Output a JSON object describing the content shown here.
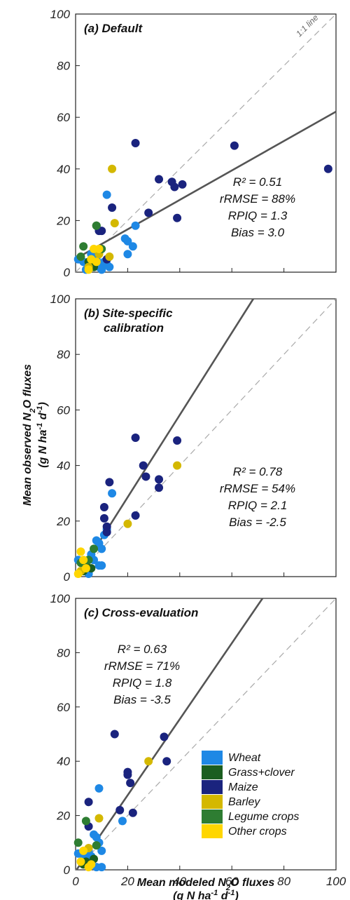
{
  "colors": {
    "Wheat": "#1e88e5",
    "Grass+clover": "#1b5e20",
    "Maize": "#1a237e",
    "Barley": "#d4b800",
    "Legume crops": "#2e7d32",
    "Other crops": "#ffd600",
    "fit_line": "#555555",
    "one_to_one": "#aaaaaa"
  },
  "labels": {
    "ylabel": "Mean observed N2O fluxes",
    "ylabel_units": "(g N ha-1 d-1)",
    "xlabel": "Mean modeled N2O fluxes",
    "xlabel_units": "(g N ha-1 d-1)",
    "one_to_one": "1:1 line"
  },
  "legend": {
    "placement": "bottom-right of panel (c)",
    "items": [
      "Wheat",
      "Grass+clover",
      "Maize",
      "Barley",
      "Legume crops",
      "Other crops"
    ]
  },
  "chart_data": [
    {
      "type": "scatter",
      "title": "(a) Default",
      "xlim": [
        0,
        100
      ],
      "ylim": [
        0,
        100
      ],
      "ticks": [
        0,
        20,
        40,
        60,
        80,
        100
      ],
      "show_x_ticks": false,
      "fit_line": {
        "slope": 0.57,
        "intercept": 5.2
      },
      "stats": [
        "R² = 0.51",
        "rRMSE = 88%",
        "RPIQ = 1.3",
        "Bias = 3.0"
      ],
      "stats_placement": "right",
      "points": [
        {
          "x": 1,
          "y": 5,
          "c": "Wheat"
        },
        {
          "x": 3,
          "y": 4,
          "c": "Wheat"
        },
        {
          "x": 5,
          "y": 3,
          "c": "Wheat"
        },
        {
          "x": 6,
          "y": 7,
          "c": "Wheat"
        },
        {
          "x": 8,
          "y": 5,
          "c": "Wheat"
        },
        {
          "x": 9,
          "y": 2,
          "c": "Wheat"
        },
        {
          "x": 10,
          "y": 1,
          "c": "Wheat"
        },
        {
          "x": 11,
          "y": 4,
          "c": "Wheat"
        },
        {
          "x": 12,
          "y": 30,
          "c": "Wheat"
        },
        {
          "x": 12,
          "y": 3,
          "c": "Wheat"
        },
        {
          "x": 13,
          "y": 2,
          "c": "Wheat"
        },
        {
          "x": 19,
          "y": 13,
          "c": "Wheat"
        },
        {
          "x": 20,
          "y": 12,
          "c": "Wheat"
        },
        {
          "x": 20,
          "y": 7,
          "c": "Wheat"
        },
        {
          "x": 22,
          "y": 10,
          "c": "Wheat"
        },
        {
          "x": 23,
          "y": 18,
          "c": "Wheat"
        },
        {
          "x": 7,
          "y": 6,
          "c": "Wheat"
        },
        {
          "x": 4,
          "y": 1,
          "c": "Wheat"
        },
        {
          "x": 8,
          "y": 18,
          "c": "Grass+clover"
        },
        {
          "x": 5,
          "y": 4,
          "c": "Grass+clover"
        },
        {
          "x": 7,
          "y": 2,
          "c": "Grass+clover"
        },
        {
          "x": 9,
          "y": 16,
          "c": "Maize"
        },
        {
          "x": 10,
          "y": 16,
          "c": "Maize"
        },
        {
          "x": 9,
          "y": 8,
          "c": "Maize"
        },
        {
          "x": 14,
          "y": 25,
          "c": "Maize"
        },
        {
          "x": 23,
          "y": 50,
          "c": "Maize"
        },
        {
          "x": 28,
          "y": 23,
          "c": "Maize"
        },
        {
          "x": 32,
          "y": 36,
          "c": "Maize"
        },
        {
          "x": 37,
          "y": 35,
          "c": "Maize"
        },
        {
          "x": 38,
          "y": 33,
          "c": "Maize"
        },
        {
          "x": 39,
          "y": 21,
          "c": "Maize"
        },
        {
          "x": 41,
          "y": 34,
          "c": "Maize"
        },
        {
          "x": 61,
          "y": 49,
          "c": "Maize"
        },
        {
          "x": 97,
          "y": 40,
          "c": "Maize"
        },
        {
          "x": 12,
          "y": 5,
          "c": "Maize"
        },
        {
          "x": 14,
          "y": 40,
          "c": "Barley"
        },
        {
          "x": 15,
          "y": 19,
          "c": "Barley"
        },
        {
          "x": 9,
          "y": 7,
          "c": "Barley"
        },
        {
          "x": 13,
          "y": 6,
          "c": "Barley"
        },
        {
          "x": 5,
          "y": 2,
          "c": "Barley"
        },
        {
          "x": 8,
          "y": 18,
          "c": "Legume crops"
        },
        {
          "x": 3,
          "y": 10,
          "c": "Legume crops"
        },
        {
          "x": 10,
          "y": 9,
          "c": "Legume crops"
        },
        {
          "x": 2,
          "y": 6,
          "c": "Legume crops"
        },
        {
          "x": 7,
          "y": 9,
          "c": "Other crops"
        },
        {
          "x": 5,
          "y": 1,
          "c": "Other crops"
        },
        {
          "x": 8,
          "y": 4,
          "c": "Other crops"
        },
        {
          "x": 6,
          "y": 5,
          "c": "Other crops"
        },
        {
          "x": 9,
          "y": 9,
          "c": "Other crops"
        }
      ]
    },
    {
      "type": "scatter",
      "title": "(b) Site-specific",
      "title_line2": "calibration",
      "xlim": [
        0,
        100
      ],
      "ylim": [
        0,
        100
      ],
      "ticks": [
        0,
        20,
        40,
        60,
        80,
        100
      ],
      "show_x_ticks": false,
      "fit_line": {
        "slope": 1.48,
        "intercept": -1.0
      },
      "stats": [
        "R² = 0.78",
        "rRMSE = 54%",
        "RPIQ = 2.1",
        "Bias = -2.5"
      ],
      "stats_placement": "right",
      "points": [
        {
          "x": 1,
          "y": 6,
          "c": "Wheat"
        },
        {
          "x": 3,
          "y": 5,
          "c": "Wheat"
        },
        {
          "x": 5,
          "y": 3,
          "c": "Wheat"
        },
        {
          "x": 6,
          "y": 8,
          "c": "Wheat"
        },
        {
          "x": 7,
          "y": 6,
          "c": "Wheat"
        },
        {
          "x": 8,
          "y": 13,
          "c": "Wheat"
        },
        {
          "x": 9,
          "y": 12,
          "c": "Wheat"
        },
        {
          "x": 10,
          "y": 10,
          "c": "Wheat"
        },
        {
          "x": 11,
          "y": 15,
          "c": "Wheat"
        },
        {
          "x": 12,
          "y": 17,
          "c": "Wheat"
        },
        {
          "x": 14,
          "y": 30,
          "c": "Wheat"
        },
        {
          "x": 9,
          "y": 4,
          "c": "Wheat"
        },
        {
          "x": 10,
          "y": 4,
          "c": "Wheat"
        },
        {
          "x": 5,
          "y": 1,
          "c": "Wheat"
        },
        {
          "x": 4,
          "y": 4,
          "c": "Grass+clover"
        },
        {
          "x": 6,
          "y": 3,
          "c": "Grass+clover"
        },
        {
          "x": 3,
          "y": 2,
          "c": "Grass+clover"
        },
        {
          "x": 11,
          "y": 25,
          "c": "Maize"
        },
        {
          "x": 11,
          "y": 21,
          "c": "Maize"
        },
        {
          "x": 12,
          "y": 18,
          "c": "Maize"
        },
        {
          "x": 13,
          "y": 34,
          "c": "Maize"
        },
        {
          "x": 12,
          "y": 16,
          "c": "Maize"
        },
        {
          "x": 23,
          "y": 50,
          "c": "Maize"
        },
        {
          "x": 23,
          "y": 22,
          "c": "Maize"
        },
        {
          "x": 26,
          "y": 40,
          "c": "Maize"
        },
        {
          "x": 27,
          "y": 36,
          "c": "Maize"
        },
        {
          "x": 32,
          "y": 35,
          "c": "Maize"
        },
        {
          "x": 32,
          "y": 32,
          "c": "Maize"
        },
        {
          "x": 39,
          "y": 49,
          "c": "Maize"
        },
        {
          "x": 20,
          "y": 19,
          "c": "Barley"
        },
        {
          "x": 39,
          "y": 40,
          "c": "Barley"
        },
        {
          "x": 2,
          "y": 2,
          "c": "Barley"
        },
        {
          "x": 7,
          "y": 10,
          "c": "Legume crops"
        },
        {
          "x": 2,
          "y": 5,
          "c": "Legume crops"
        },
        {
          "x": 5,
          "y": 6,
          "c": "Legume crops"
        },
        {
          "x": 2,
          "y": 9,
          "c": "Other crops"
        },
        {
          "x": 3,
          "y": 6,
          "c": "Other crops"
        },
        {
          "x": 1,
          "y": 1,
          "c": "Other crops"
        },
        {
          "x": 4,
          "y": 3,
          "c": "Other crops"
        }
      ]
    },
    {
      "type": "scatter",
      "title": "(c) Cross-evaluation",
      "xlim": [
        0,
        100
      ],
      "ylim": [
        0,
        100
      ],
      "ticks": [
        0,
        20,
        40,
        60,
        80,
        100
      ],
      "show_x_ticks": true,
      "fit_line": {
        "slope": 1.4,
        "intercept": -0.5
      },
      "stats": [
        "R² = 0.63",
        "rRMSE = 71%",
        "RPIQ = 1.8",
        "Bias = -3.5"
      ],
      "stats_placement": "top-left",
      "points": [
        {
          "x": 1,
          "y": 6,
          "c": "Wheat"
        },
        {
          "x": 3,
          "y": 5,
          "c": "Wheat"
        },
        {
          "x": 5,
          "y": 7,
          "c": "Wheat"
        },
        {
          "x": 6,
          "y": 3,
          "c": "Wheat"
        },
        {
          "x": 7,
          "y": 13,
          "c": "Wheat"
        },
        {
          "x": 8,
          "y": 12,
          "c": "Wheat"
        },
        {
          "x": 9,
          "y": 30,
          "c": "Wheat"
        },
        {
          "x": 9,
          "y": 10,
          "c": "Wheat"
        },
        {
          "x": 10,
          "y": 7,
          "c": "Wheat"
        },
        {
          "x": 10,
          "y": 1,
          "c": "Wheat"
        },
        {
          "x": 8,
          "y": 1,
          "c": "Wheat"
        },
        {
          "x": 18,
          "y": 18,
          "c": "Wheat"
        },
        {
          "x": 6,
          "y": 5,
          "c": "Wheat"
        },
        {
          "x": 4,
          "y": 2,
          "c": "Wheat"
        },
        {
          "x": 4,
          "y": 3,
          "c": "Grass+clover"
        },
        {
          "x": 7,
          "y": 4,
          "c": "Grass+clover"
        },
        {
          "x": 3,
          "y": 2,
          "c": "Grass+clover"
        },
        {
          "x": 5,
          "y": 25,
          "c": "Maize"
        },
        {
          "x": 5,
          "y": 16,
          "c": "Maize"
        },
        {
          "x": 15,
          "y": 50,
          "c": "Maize"
        },
        {
          "x": 17,
          "y": 22,
          "c": "Maize"
        },
        {
          "x": 20,
          "y": 36,
          "c": "Maize"
        },
        {
          "x": 20,
          "y": 35,
          "c": "Maize"
        },
        {
          "x": 21,
          "y": 32,
          "c": "Maize"
        },
        {
          "x": 22,
          "y": 21,
          "c": "Maize"
        },
        {
          "x": 34,
          "y": 49,
          "c": "Maize"
        },
        {
          "x": 35,
          "y": 40,
          "c": "Maize"
        },
        {
          "x": 9,
          "y": 19,
          "c": "Barley"
        },
        {
          "x": 28,
          "y": 40,
          "c": "Barley"
        },
        {
          "x": 5,
          "y": 8,
          "c": "Barley"
        },
        {
          "x": 4,
          "y": 18,
          "c": "Legume crops"
        },
        {
          "x": 1,
          "y": 10,
          "c": "Legume crops"
        },
        {
          "x": 8,
          "y": 9,
          "c": "Legume crops"
        },
        {
          "x": 5,
          "y": 1,
          "c": "Other crops"
        },
        {
          "x": 3,
          "y": 7,
          "c": "Other crops"
        },
        {
          "x": 2,
          "y": 3,
          "c": "Other crops"
        },
        {
          "x": 6,
          "y": 2,
          "c": "Other crops"
        }
      ]
    }
  ]
}
